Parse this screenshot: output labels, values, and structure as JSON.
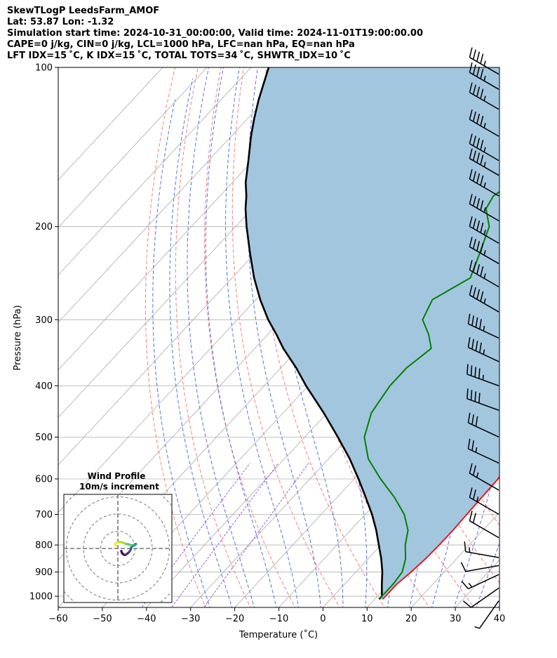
{
  "header": {
    "line1": "SkewTLogP LeedsFarm_AMOF",
    "line2": "Lat: 53.87   Lon: -1.32",
    "line3": "Simulation start time: 2024-10-31_00:00:00, Valid time: 2024-11-01T19:00:00.00",
    "line4": "CAPE=0 j/kg, CIN=0 j/kg, LCL=1000 hPa, LFC=nan hPa, EQ=nan hPa",
    "line5": "LFT IDX=15$^\\circ$C, K IDX=15$^\\circ$C, TOTAL TOTS=34$^\\circ$C, SHWTR_IDX=10$^\\circ$C"
  },
  "header_display": {
    "line5": "LFT IDX=15 ˚C, K IDX=15 ˚C, TOTAL TOTS=34 ˚C, SHWTR_IDX=10 ˚C"
  },
  "colors": {
    "temperature": "#e31a1c",
    "dewpoint": "#008000",
    "parcel": "#000000",
    "cape_fill": "#a3c6df",
    "dry_adiabat": "#f08080",
    "moist_adiabat": "#5a6fe0",
    "isotherm": "#aaaaaa",
    "mixing_ratio": "#9b59d0"
  },
  "chart_data": {
    "type": "line",
    "title": "",
    "xlabel": "Temperature ($^\\circ$C)",
    "xlabel_display": "Temperature (˚C)",
    "ylabel": "Pressure (hPa)",
    "xlim": [
      -60,
      40
    ],
    "ylim": [
      1050,
      100
    ],
    "y_scale": "log",
    "grid": true,
    "x_ticks": [
      "−60",
      "−50",
      "−40",
      "−30",
      "−20",
      "−10",
      "0",
      "10",
      "20",
      "30",
      "40"
    ],
    "y_ticks": [
      "100",
      "200",
      "300",
      "400",
      "500",
      "600",
      "700",
      "800",
      "900",
      "1000"
    ],
    "series": [
      {
        "role": "temperature",
        "pressure": [
          1013,
          1000,
          950,
          900,
          850,
          800,
          750,
          700,
          650,
          600,
          550,
          500,
          450,
          400,
          370,
          340,
          320,
          300,
          275,
          250,
          225,
          200,
          185,
          175,
          165,
          150,
          135,
          125,
          115,
          100
        ],
        "temperature": [
          11.8,
          11.8,
          11.8,
          12.5,
          13.0,
          13.2,
          13.2,
          13.0,
          12.8,
          12.6,
          11.5,
          9.5,
          6.0,
          2.2,
          0.5,
          -1.5,
          -2.5,
          -4.5,
          -8.0,
          -11.5,
          -14.2,
          -17.5,
          -20.5,
          -21.5,
          -20.5,
          -16.5,
          -15.5,
          -15.8,
          -15.5,
          -12.5
        ]
      },
      {
        "role": "dewpoint",
        "pressure": [
          1013,
          1000,
          950,
          900,
          850,
          800,
          750,
          700,
          650,
          600,
          550,
          500,
          450,
          400,
          370,
          340,
          320,
          300,
          275,
          250,
          225,
          200,
          185,
          175,
          165,
          150,
          135,
          125,
          115,
          100
        ],
        "temperature": [
          11.0,
          11.0,
          11.0,
          10.5,
          8.5,
          5.5,
          3.0,
          -1.2,
          -7.0,
          -14.0,
          -21.0,
          -26.5,
          -30.0,
          -31.5,
          -31.5,
          -30.0,
          -33.5,
          -38.0,
          -40.0,
          -36.0,
          -39.0,
          -42.5,
          -47.0,
          -48.0,
          -46.5,
          -46.5,
          -49.0,
          -48.5,
          -46.5,
          -40.5
        ]
      },
      {
        "role": "parcel",
        "pressure": [
          1013,
          1000,
          950,
          900,
          850,
          800,
          750,
          700,
          650,
          600,
          550,
          500,
          450,
          400,
          370,
          340,
          320,
          300,
          275,
          250,
          225,
          200,
          185,
          175,
          165,
          150,
          135,
          125,
          115,
          100
        ],
        "temperature": [
          11.0,
          11.0,
          8.5,
          6.0,
          3.0,
          -0.5,
          -4.2,
          -8.5,
          -13.5,
          -19.0,
          -25.2,
          -32.5,
          -40.8,
          -50.5,
          -56.5,
          -63.5,
          -68.0,
          -73.0,
          -79.0,
          -85.0,
          -91.0,
          -97.5,
          -101.5,
          -104.0,
          -107.0,
          -111.0,
          -115.5,
          -118.5,
          -121.5,
          -126.0
        ]
      }
    ],
    "wind_barbs": {
      "pressure": [
        1020,
        965,
        910,
        875,
        845,
        775,
        700,
        630,
        560,
        500,
        445,
        400,
        360,
        325,
        290,
        260,
        235,
        215,
        195,
        175,
        160,
        150,
        135,
        120,
        110,
        103
      ],
      "speed_kt": [
        5,
        10,
        15,
        10,
        15,
        20,
        25,
        25,
        25,
        30,
        40,
        45,
        45,
        45,
        45,
        45,
        45,
        45,
        45,
        45,
        45,
        45,
        45,
        45,
        45,
        45
      ],
      "direction_deg": [
        215,
        235,
        245,
        260,
        280,
        300,
        300,
        300,
        295,
        295,
        290,
        290,
        295,
        295,
        300,
        300,
        300,
        300,
        300,
        300,
        300,
        300,
        300,
        300,
        300,
        300
      ]
    },
    "inset": {
      "title": "Wind Profile",
      "subtitle": "10m/s increment",
      "ring_increment_ms": 10,
      "hodograph": {
        "u": [
          2.0,
          2.3,
          2.8,
          3.5,
          4.2,
          5.0,
          6.0,
          6.8,
          7.3,
          7.6,
          8.0,
          9.0,
          10.0,
          10.4,
          10.5,
          10.0,
          9.6,
          9.8,
          9.2,
          8.0,
          7.5,
          6.5,
          5.5,
          4.0,
          2.5,
          1.0,
          -0.5,
          -1.2,
          -1.5,
          -1.2
        ],
        "v": [
          -1.5,
          -2.4,
          -3.1,
          -3.6,
          -3.8,
          -3.4,
          -2.6,
          -1.8,
          -1.0,
          0.0,
          1.0,
          1.6,
          2.0,
          2.4,
          2.6,
          2.5,
          2.2,
          2.0,
          1.8,
          1.7,
          2.0,
          2.3,
          2.5,
          2.9,
          3.5,
          3.8,
          3.6,
          3.1,
          2.4,
          1.6
        ]
      }
    }
  }
}
